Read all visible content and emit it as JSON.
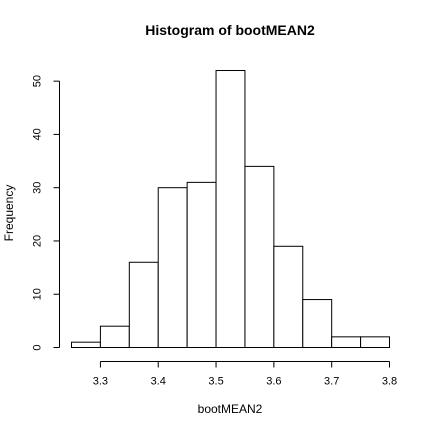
{
  "chart_data": {
    "type": "bar",
    "title": "Histogram of bootMEAN2",
    "xlabel": "bootMEAN2",
    "ylabel": "Frequency",
    "xlim": [
      3.25,
      3.8
    ],
    "ylim": [
      0,
      52
    ],
    "bin_edges": [
      3.25,
      3.3,
      3.35,
      3.4,
      3.45,
      3.5,
      3.55,
      3.6,
      3.65,
      3.7,
      3.75,
      3.8
    ],
    "values": [
      1,
      4,
      16,
      30,
      31,
      52,
      34,
      19,
      9,
      2,
      2
    ],
    "x_ticks": [
      "3.3",
      "3.4",
      "3.5",
      "3.6",
      "3.7",
      "3.8"
    ],
    "y_ticks": [
      "0",
      "10",
      "20",
      "30",
      "40",
      "50"
    ],
    "grid": false,
    "bar_fill": "#ffffff",
    "bar_stroke": "#000000"
  }
}
